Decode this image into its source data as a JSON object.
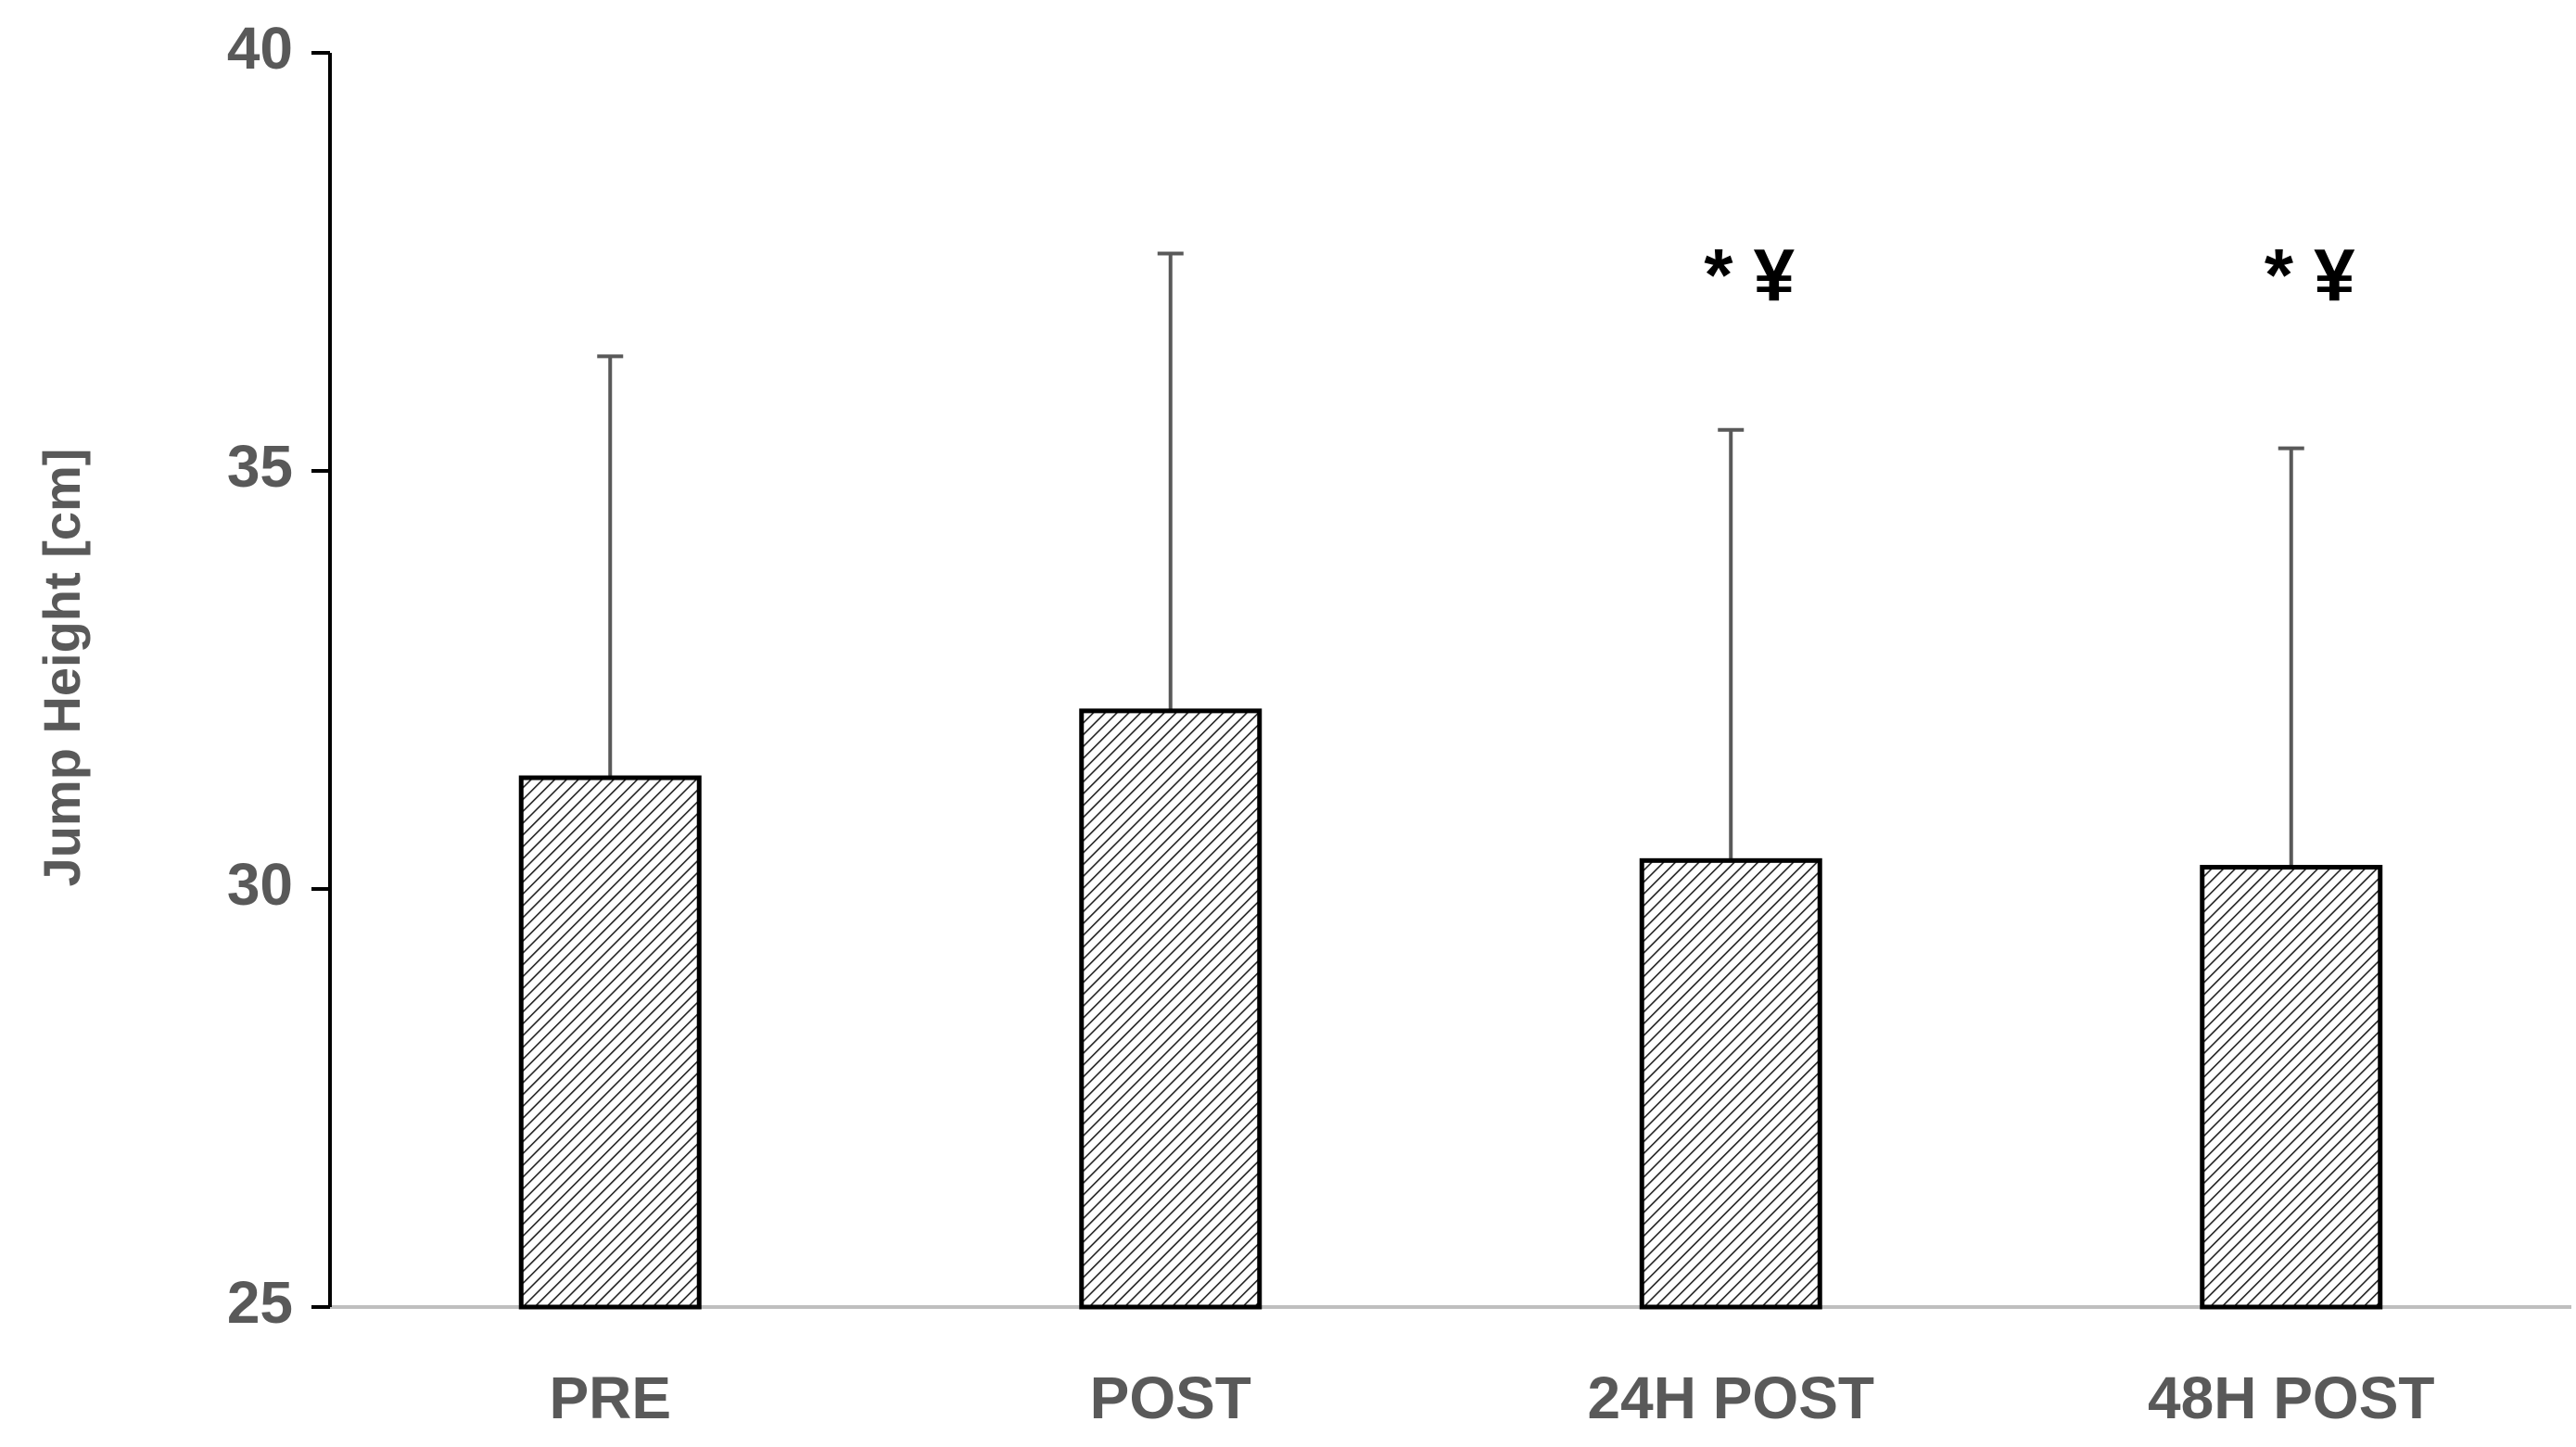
{
  "chart_data": {
    "type": "bar",
    "y_label": "Jump Height [cm]",
    "categories": [
      "PRE",
      "POST",
      "24H POST",
      "48H POST"
    ],
    "values": [
      31.33,
      32.13,
      30.34,
      30.26
    ],
    "errors": [
      5.04,
      5.47,
      5.15,
      5.01
    ],
    "value_annotations": [
      null,
      null,
      "* ¥",
      "* ¥"
    ],
    "color": "#000000",
    "ylim": [
      25,
      40
    ],
    "yticks": [
      25,
      30,
      35,
      40
    ],
    "grid": false
  }
}
